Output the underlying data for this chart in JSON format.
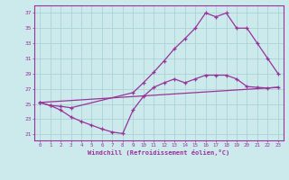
{
  "bg_color": "#cce9ec",
  "line_color": "#993399",
  "grid_color": "#aad4d8",
  "xlabel": "Windchill (Refroidissement éolien,°C)",
  "ylabel_ticks": [
    21,
    23,
    25,
    27,
    29,
    31,
    33,
    35,
    37
  ],
  "xlim": [
    -0.5,
    23.5
  ],
  "ylim": [
    20.2,
    38.0
  ],
  "line1_x": [
    0,
    1,
    2,
    3,
    9,
    10,
    11,
    12,
    13,
    14,
    15,
    16,
    17,
    18,
    19,
    20,
    21,
    22,
    23
  ],
  "line1_y": [
    25.2,
    24.8,
    24.7,
    24.5,
    26.5,
    27.8,
    29.2,
    30.7,
    32.3,
    33.6,
    35.0,
    37.0,
    36.5,
    37.0,
    35.0,
    35.0,
    33.0,
    31.0,
    29.0
  ],
  "line2_x": [
    0,
    23
  ],
  "line2_y": [
    25.2,
    27.2
  ],
  "line3_x": [
    0,
    1,
    2,
    3,
    4,
    5,
    6,
    7,
    8,
    9,
    10,
    11,
    12,
    13,
    14,
    15,
    16,
    17,
    18,
    19,
    20,
    21,
    22,
    23
  ],
  "line3_y": [
    25.2,
    24.8,
    24.2,
    23.3,
    22.7,
    22.2,
    21.7,
    21.3,
    21.1,
    24.2,
    26.0,
    27.2,
    27.8,
    28.3,
    27.8,
    28.3,
    28.8,
    28.8,
    28.8,
    28.3,
    27.3,
    27.2,
    27.1,
    27.2
  ]
}
